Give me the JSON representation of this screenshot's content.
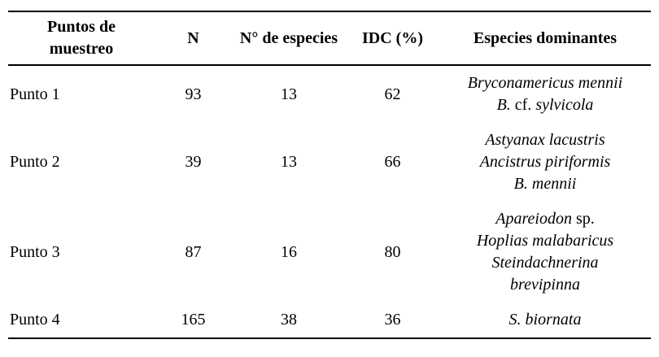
{
  "colors": {
    "text": "#000000",
    "background": "#ffffff",
    "rule": "#000000"
  },
  "table": {
    "header": {
      "puntos_line1": "Puntos de",
      "puntos_line2": "muestreo",
      "n": "N",
      "num_especies": "N° de especies",
      "idc": "IDC (%)",
      "dominantes": "Especies dominantes"
    },
    "rows": [
      {
        "punto": "Punto 1",
        "n": "93",
        "num_especies": "13",
        "idc": "62",
        "dominantes": [
          [
            {
              "text": "Bryconamericus mennii",
              "italic": true
            }
          ],
          [
            {
              "text": "B.",
              "italic": true
            },
            {
              "text": " cf. ",
              "italic": false
            },
            {
              "text": "sylvicola",
              "italic": true
            }
          ]
        ]
      },
      {
        "punto": "Punto 2",
        "n": "39",
        "num_especies": "13",
        "idc": "66",
        "dominantes": [
          [
            {
              "text": "Astyanax lacustris",
              "italic": true
            }
          ],
          [
            {
              "text": "Ancistrus piriformis",
              "italic": true
            }
          ],
          [
            {
              "text": "B. mennii",
              "italic": true
            }
          ]
        ]
      },
      {
        "punto": "Punto 3",
        "n": "87",
        "num_especies": "16",
        "idc": "80",
        "dominantes": [
          [
            {
              "text": "Apareiodon",
              "italic": true
            },
            {
              "text": " sp.",
              "italic": false
            }
          ],
          [
            {
              "text": "Hoplias malabaricus",
              "italic": true
            }
          ],
          [
            {
              "text": "Steindachnerina",
              "italic": true
            }
          ],
          [
            {
              "text": "brevipinna",
              "italic": true
            }
          ]
        ]
      },
      {
        "punto": "Punto 4",
        "n": "165",
        "num_especies": "38",
        "idc": "36",
        "dominantes": [
          [
            {
              "text": "S. biornata",
              "italic": true
            }
          ]
        ]
      }
    ]
  }
}
